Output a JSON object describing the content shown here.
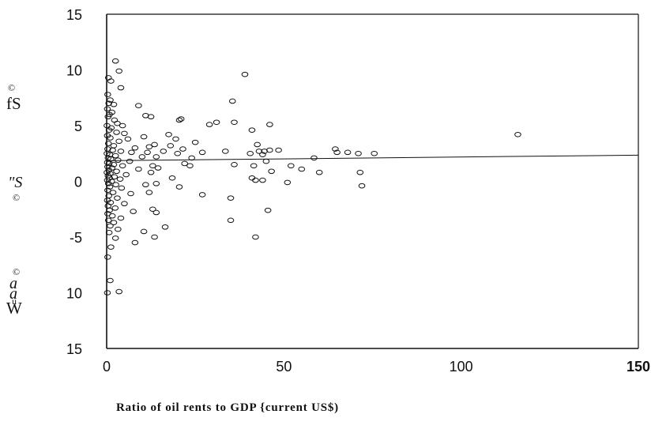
{
  "chart_data": {
    "type": "scatter",
    "title": "",
    "xlabel": "Ratio of oil rents to GDP {current US$)",
    "ylabel_fragments": [
      "©",
      "fS",
      "\"S",
      "©",
      "©",
      "a",
      "a",
      "u",
      "W"
    ],
    "xlim": [
      0,
      150
    ],
    "ylim": [
      -15,
      15
    ],
    "x_ticks": [
      {
        "value": 0,
        "label": "0",
        "bold": false
      },
      {
        "value": 50,
        "label": "50",
        "bold": false
      },
      {
        "value": 100,
        "label": "100",
        "bold": false
      },
      {
        "value": 150,
        "label": "150",
        "bold": true
      }
    ],
    "y_ticks": [
      {
        "value": 15,
        "label": "15"
      },
      {
        "value": 10,
        "label": "10"
      },
      {
        "value": 5,
        "label": "5"
      },
      {
        "value": 0,
        "label": "0"
      },
      {
        "value": -5,
        "label": "-5"
      },
      {
        "value": -10,
        "label": "10"
      },
      {
        "value": -15,
        "label": "15"
      }
    ],
    "grid": false,
    "fit_line": {
      "x": [
        0,
        150
      ],
      "y": [
        1.85,
        2.35
      ]
    },
    "points": [
      [
        2.5,
        10.8
      ],
      [
        3.5,
        9.9
      ],
      [
        0.5,
        9.3
      ],
      [
        1.2,
        9.0
      ],
      [
        4.0,
        8.4
      ],
      [
        0.3,
        7.8
      ],
      [
        1.0,
        7.3
      ],
      [
        0.6,
        7.0
      ],
      [
        2.0,
        6.9
      ],
      [
        0.2,
        6.5
      ],
      [
        1.5,
        6.2
      ],
      [
        0.8,
        6.0
      ],
      [
        0.4,
        5.8
      ],
      [
        2.2,
        5.5
      ],
      [
        3.0,
        5.2
      ],
      [
        4.5,
        5.0
      ],
      [
        0.1,
        5.0
      ],
      [
        1.3,
        4.8
      ],
      [
        0.7,
        4.6
      ],
      [
        2.8,
        4.4
      ],
      [
        5.0,
        4.3
      ],
      [
        0.2,
        4.1
      ],
      [
        1.0,
        3.9
      ],
      [
        6.0,
        3.8
      ],
      [
        3.5,
        3.6
      ],
      [
        0.5,
        3.4
      ],
      [
        2.0,
        3.2
      ],
      [
        8.0,
        3.0
      ],
      [
        0.3,
        2.9
      ],
      [
        1.7,
        2.8
      ],
      [
        4.0,
        2.7
      ],
      [
        7.0,
        2.6
      ],
      [
        0.1,
        2.5
      ],
      [
        0.9,
        2.4
      ],
      [
        2.5,
        2.3
      ],
      [
        10.0,
        2.2
      ],
      [
        0.4,
        2.1
      ],
      [
        1.2,
        2.0
      ],
      [
        3.2,
        1.9
      ],
      [
        6.5,
        1.8
      ],
      [
        0.2,
        1.7
      ],
      [
        0.7,
        1.6
      ],
      [
        2.0,
        1.5
      ],
      [
        4.5,
        1.4
      ],
      [
        0.3,
        1.3
      ],
      [
        1.5,
        1.2
      ],
      [
        9.0,
        1.1
      ],
      [
        0.6,
        1.0
      ],
      [
        2.8,
        0.9
      ],
      [
        0.1,
        0.8
      ],
      [
        1.0,
        0.7
      ],
      [
        5.5,
        0.6
      ],
      [
        0.4,
        0.5
      ],
      [
        2.2,
        0.4
      ],
      [
        0.8,
        0.3
      ],
      [
        3.8,
        0.2
      ],
      [
        0.2,
        0.1
      ],
      [
        1.4,
        0.0
      ],
      [
        0.5,
        -0.2
      ],
      [
        2.6,
        -0.3
      ],
      [
        0.9,
        -0.5
      ],
      [
        4.2,
        -0.6
      ],
      [
        0.3,
        -0.8
      ],
      [
        1.8,
        -1.0
      ],
      [
        6.8,
        -1.1
      ],
      [
        0.6,
        -1.3
      ],
      [
        3.0,
        -1.5
      ],
      [
        0.2,
        -1.7
      ],
      [
        1.1,
        -1.9
      ],
      [
        5.0,
        -2.0
      ],
      [
        0.4,
        -2.2
      ],
      [
        2.4,
        -2.4
      ],
      [
        0.8,
        -2.6
      ],
      [
        7.5,
        -2.7
      ],
      [
        0.3,
        -2.9
      ],
      [
        1.6,
        -3.1
      ],
      [
        4.0,
        -3.3
      ],
      [
        0.5,
        -3.5
      ],
      [
        2.0,
        -3.7
      ],
      [
        1.0,
        -4.0
      ],
      [
        3.2,
        -4.3
      ],
      [
        0.7,
        -4.6
      ],
      [
        2.5,
        -5.1
      ],
      [
        8.0,
        -5.5
      ],
      [
        1.2,
        -5.9
      ],
      [
        0.3,
        -6.8
      ],
      [
        1.0,
        -8.9
      ],
      [
        3.5,
        -9.9
      ],
      [
        0.2,
        -10.0
      ],
      [
        9.0,
        6.8
      ],
      [
        11.0,
        5.9
      ],
      [
        12.5,
        5.8
      ],
      [
        10.5,
        4.0
      ],
      [
        12.0,
        3.1
      ],
      [
        13.5,
        3.3
      ],
      [
        11.5,
        2.6
      ],
      [
        14.0,
        2.2
      ],
      [
        13.0,
        1.4
      ],
      [
        14.5,
        1.2
      ],
      [
        12.5,
        0.8
      ],
      [
        11.0,
        -0.3
      ],
      [
        14.0,
        -0.2
      ],
      [
        12.0,
        -1.0
      ],
      [
        13.0,
        -2.5
      ],
      [
        14.0,
        -2.8
      ],
      [
        10.5,
        -4.5
      ],
      [
        13.5,
        -5.0
      ],
      [
        16.0,
        2.7
      ],
      [
        17.5,
        4.2
      ],
      [
        18.0,
        3.2
      ],
      [
        19.5,
        3.8
      ],
      [
        20.5,
        5.5
      ],
      [
        21.0,
        5.6
      ],
      [
        21.5,
        2.9
      ],
      [
        20.0,
        2.5
      ],
      [
        22.0,
        1.6
      ],
      [
        23.5,
        1.4
      ],
      [
        24.0,
        2.1
      ],
      [
        18.5,
        0.3
      ],
      [
        20.5,
        -0.5
      ],
      [
        16.5,
        -4.1
      ],
      [
        25.0,
        3.5
      ],
      [
        27.0,
        2.6
      ],
      [
        27.0,
        -1.2
      ],
      [
        29.0,
        5.1
      ],
      [
        31.0,
        5.3
      ],
      [
        33.5,
        2.7
      ],
      [
        35.5,
        7.2
      ],
      [
        36.0,
        5.3
      ],
      [
        36.0,
        1.5
      ],
      [
        35.0,
        -1.5
      ],
      [
        35.0,
        -3.5
      ],
      [
        39.0,
        9.6
      ],
      [
        40.5,
        2.5
      ],
      [
        41.0,
        4.6
      ],
      [
        41.0,
        0.3
      ],
      [
        41.5,
        1.4
      ],
      [
        42.0,
        0.1
      ],
      [
        42.5,
        3.3
      ],
      [
        42.0,
        -5.0
      ],
      [
        43.0,
        2.7
      ],
      [
        44.0,
        2.4
      ],
      [
        44.5,
        2.7
      ],
      [
        45.0,
        1.8
      ],
      [
        46.0,
        5.1
      ],
      [
        46.0,
        2.8
      ],
      [
        46.5,
        0.9
      ],
      [
        45.5,
        -2.6
      ],
      [
        48.5,
        2.8
      ],
      [
        44.0,
        0.1
      ],
      [
        51.0,
        -0.1
      ],
      [
        52.0,
        1.4
      ],
      [
        55.0,
        1.1
      ],
      [
        58.5,
        2.1
      ],
      [
        60.0,
        0.8
      ],
      [
        64.5,
        2.9
      ],
      [
        65.0,
        2.6
      ],
      [
        68.0,
        2.6
      ],
      [
        71.0,
        2.5
      ],
      [
        71.5,
        0.8
      ],
      [
        72.0,
        -0.4
      ],
      [
        75.5,
        2.5
      ],
      [
        116.0,
        4.2
      ]
    ]
  }
}
